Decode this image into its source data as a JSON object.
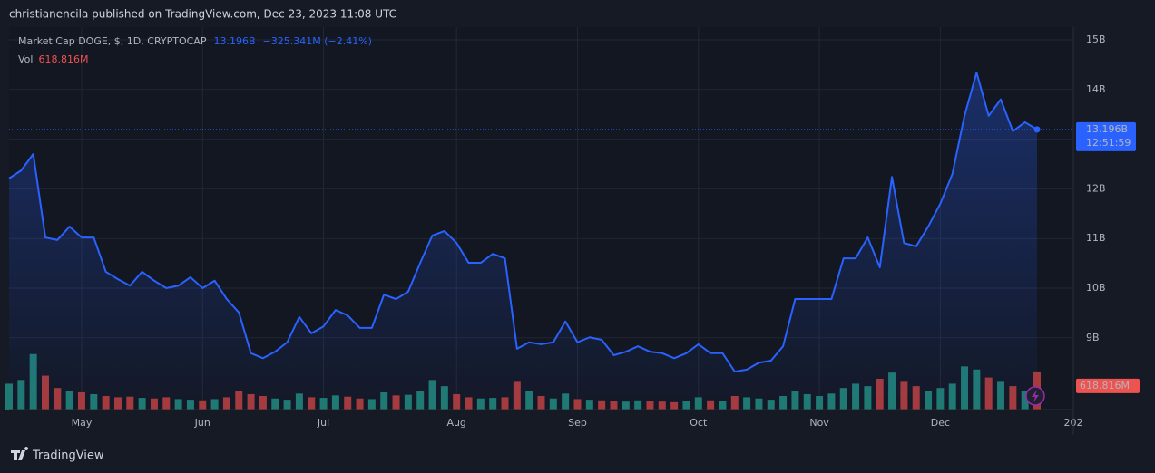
{
  "header": {
    "publisher": "christianencila published on TradingView.com, Dec 23, 2023 11:08 UTC",
    "change": "−325.341M (−2.41%)",
    "countdown": "12:51:59"
  },
  "footer": {
    "brand": "TradingView"
  },
  "chart_data": {
    "type": "line",
    "categories": [
      null,
      null,
      null,
      null,
      null,
      null,
      "May",
      null,
      null,
      null,
      null,
      null,
      null,
      null,
      null,
      null,
      "Jun",
      null,
      null,
      null,
      null,
      null,
      null,
      null,
      null,
      null,
      "Jul",
      null,
      null,
      null,
      null,
      null,
      null,
      null,
      null,
      null,
      null,
      "Aug",
      null,
      null,
      null,
      null,
      null,
      null,
      null,
      null,
      null,
      "Sep",
      null,
      null,
      null,
      null,
      null,
      null,
      null,
      null,
      null,
      "Oct",
      null,
      null,
      null,
      null,
      null,
      null,
      null,
      null,
      null,
      "Nov",
      null,
      null,
      null,
      null,
      null,
      null,
      null,
      null,
      null,
      "Dec",
      null,
      null,
      null,
      null,
      null,
      null,
      null,
      null,
      null,
      null,
      "202"
    ],
    "series": [
      {
        "name": "Market Cap DOGE, $, 1D, CRYPTOCAP",
        "color": "#2962ff",
        "values": [
          12210000000.0,
          12370000000.0,
          12700000000.0,
          11020000000.0,
          10970000000.0,
          11240000000.0,
          11020000000.0,
          11020000000.0,
          10330000000.0,
          10180000000.0,
          10050000000.0,
          10330000000.0,
          10150000000.0,
          10000000000.0,
          10050000000.0,
          10220000000.0,
          10000000000.0,
          10150000000.0,
          9780000000.0,
          9510000000.0,
          8690000000.0,
          8590000000.0,
          8720000000.0,
          8910000000.0,
          9420000000.0,
          9090000000.0,
          9230000000.0,
          9560000000.0,
          9450000000.0,
          9200000000.0,
          9200000000.0,
          9870000000.0,
          9780000000.0,
          9930000000.0,
          10510000000.0,
          11060000000.0,
          11150000000.0,
          10910000000.0,
          10510000000.0,
          10510000000.0,
          10690000000.0,
          10600000000.0,
          8780000000.0,
          8910000000.0,
          8870000000.0,
          8910000000.0,
          9330000000.0,
          8910000000.0,
          9010000000.0,
          8960000000.0,
          8650000000.0,
          8720000000.0,
          8830000000.0,
          8720000000.0,
          8690000000.0,
          8590000000.0,
          8690000000.0,
          8870000000.0,
          8690000000.0,
          8690000000.0,
          8320000000.0,
          8360000000.0,
          8500000000.0,
          8540000000.0,
          8830000000.0,
          9780000000.0,
          9780000000.0,
          9780000000.0,
          9780000000.0,
          10600000000.0,
          10600000000.0,
          11020000000.0,
          10420000000.0,
          12240000000.0,
          10910000000.0,
          10840000000.0,
          11240000000.0,
          11700000000.0,
          12300000000.0,
          13470000000.0,
          14340000000.0,
          13470000000.0,
          13800000000.0,
          13160000000.0,
          13340000000.0,
          13196000000,
          null,
          null,
          null
        ],
        "value_labels": {
          "85": "13.196B"
        }
      },
      {
        "name": "Vol",
        "axis": "y2",
        "color": "#ef5350",
        "up_color": "#1f7a70",
        "down_color": "#a83a3a",
        "values": [
          420000000.0,
          480000000.0,
          900000000.0,
          550000000.0,
          350000000.0,
          300000000.0,
          280000000.0,
          250000000.0,
          220000000.0,
          200000000.0,
          210000000.0,
          190000000.0,
          180000000.0,
          200000000.0,
          170000000.0,
          160000000.0,
          150000000.0,
          170000000.0,
          200000000.0,
          300000000.0,
          250000000.0,
          220000000.0,
          180000000.0,
          160000000.0,
          260000000.0,
          200000000.0,
          190000000.0,
          230000000.0,
          210000000.0,
          180000000.0,
          170000000.0,
          280000000.0,
          230000000.0,
          240000000.0,
          300000000.0,
          480000000.0,
          380000000.0,
          250000000.0,
          200000000.0,
          180000000.0,
          190000000.0,
          200000000.0,
          450000000.0,
          300000000.0,
          220000000.0,
          180000000.0,
          260000000.0,
          170000000.0,
          160000000.0,
          150000000.0,
          140000000.0,
          130000000.0,
          150000000.0,
          140000000.0,
          130000000.0,
          120000000.0,
          140000000.0,
          200000000.0,
          150000000.0,
          140000000.0,
          220000000.0,
          200000000.0,
          180000000.0,
          160000000.0,
          220000000.0,
          300000000.0,
          250000000.0,
          220000000.0,
          260000000.0,
          350000000.0,
          420000000.0,
          380000000.0,
          500000000.0,
          600000000.0,
          450000000.0,
          380000000.0,
          300000000.0,
          350000000.0,
          420000000.0,
          700000000.0,
          650000000.0,
          520000000.0,
          450000000.0,
          380000000.0,
          300000000.0,
          618816000,
          null,
          null,
          null
        ],
        "value_labels": {
          "85": "618.816M"
        }
      }
    ],
    "ylim": [
      7555000000.0,
      15255000000.0
    ],
    "yticks": [
      {
        "value": 9000000000.0,
        "label": "9B"
      },
      {
        "value": 10000000000.0,
        "label": "10B"
      },
      {
        "value": 11000000000.0,
        "label": "11B"
      },
      {
        "value": 12000000000.0,
        "label": "12B"
      },
      {
        "value": 13000000000.0,
        "label": "13B"
      },
      {
        "value": 14000000000.0,
        "label": "14B"
      },
      {
        "value": 15000000000.0,
        "label": "15B"
      }
    ],
    "y2lim": [
      0,
      6200000000.0
    ],
    "grid": true
  }
}
